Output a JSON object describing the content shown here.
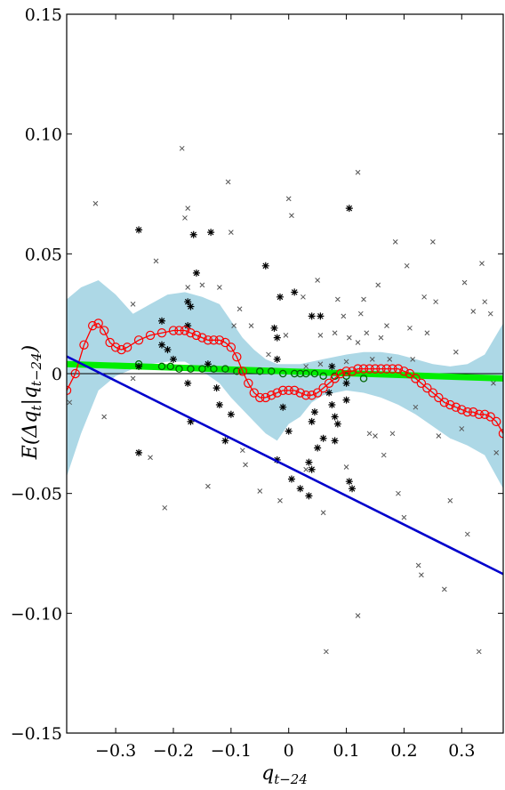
{
  "chart_data": {
    "type": "scatter",
    "title": "",
    "xlabel": "q",
    "xlabel_sub": "t−24",
    "ylabel_parts": [
      "E(",
      "Δq",
      "t",
      "|q",
      "t−24",
      ")"
    ],
    "xlim": [
      -0.385,
      0.372
    ],
    "ylim": [
      -0.15,
      0.15
    ],
    "xticks": [
      -0.3,
      -0.2,
      -0.1,
      0,
      0.1,
      0.2,
      0.3
    ],
    "xtick_labels": [
      "−0.3",
      "−0.2",
      "−0.1",
      "0",
      "0.1",
      "0.2",
      "0.3"
    ],
    "yticks": [
      -0.15,
      -0.1,
      -0.05,
      0,
      0.05,
      0.1,
      0.15
    ],
    "ytick_labels": [
      "−0.15",
      "−0.10",
      "−0.05",
      "0",
      "0.05",
      "0.10",
      "0.15"
    ],
    "grid": false,
    "legend": "none",
    "zero_line": 0,
    "colors": {
      "band": "#add8e6",
      "kernel": "#ff0000",
      "linear": "#0000cc",
      "green": "#00ee00",
      "green_markers": "#006400",
      "points": "#000000"
    },
    "confidence_band": {
      "x": [
        -0.385,
        -0.36,
        -0.33,
        -0.3,
        -0.27,
        -0.24,
        -0.21,
        -0.18,
        -0.15,
        -0.12,
        -0.1,
        -0.08,
        -0.06,
        -0.04,
        -0.02,
        0,
        0.02,
        0.04,
        0.06,
        0.08,
        0.1,
        0.13,
        0.16,
        0.19,
        0.22,
        0.25,
        0.28,
        0.31,
        0.34,
        0.372
      ],
      "upper": [
        0.031,
        0.036,
        0.039,
        0.033,
        0.025,
        0.029,
        0.033,
        0.034,
        0.032,
        0.029,
        0.022,
        0.015,
        0.01,
        0.006,
        0.004,
        0.004,
        0.004,
        0.005,
        0.006,
        0.007,
        0.008,
        0.009,
        0.009,
        0.008,
        0.006,
        0.004,
        0.003,
        0.004,
        0.008,
        0.021
      ],
      "lower": [
        -0.043,
        -0.025,
        -0.007,
        -0.001,
        0.002,
        0.004,
        0.005,
        0.005,
        0.001,
        -0.004,
        -0.01,
        -0.015,
        -0.02,
        -0.025,
        -0.028,
        -0.021,
        -0.018,
        -0.012,
        -0.009,
        -0.008,
        -0.007,
        -0.008,
        -0.01,
        -0.013,
        -0.017,
        -0.022,
        -0.027,
        -0.03,
        -0.034,
        -0.048
      ]
    },
    "series": [
      {
        "type": "line",
        "x": [
          -0.385,
          -0.3
        ],
        "values": [
          0.0072,
          -0.003
        ]
      },
      {
        "type": "kernel",
        "x": [
          -0.385,
          -0.37,
          -0.355,
          -0.34,
          -0.33,
          -0.32,
          -0.31,
          -0.3,
          -0.29,
          -0.28,
          -0.26,
          -0.24,
          -0.22,
          -0.2,
          -0.19,
          -0.18,
          -0.17,
          -0.16,
          -0.15,
          -0.14,
          -0.13,
          -0.12,
          -0.11,
          -0.1,
          -0.09,
          -0.08,
          -0.07,
          -0.06,
          -0.05,
          -0.04,
          -0.03,
          -0.02,
          -0.01,
          0,
          0.01,
          0.02,
          0.03,
          0.04,
          0.05,
          0.06,
          0.07,
          0.08,
          0.09,
          0.1,
          0.11,
          0.12,
          0.13,
          0.14,
          0.15,
          0.16,
          0.17,
          0.18,
          0.19,
          0.2,
          0.21,
          0.22,
          0.23,
          0.24,
          0.25,
          0.26,
          0.27,
          0.28,
          0.29,
          0.3,
          0.31,
          0.32,
          0.33,
          0.34,
          0.35,
          0.36,
          0.372
        ],
        "values": [
          -0.007,
          0.0,
          0.012,
          0.02,
          0.021,
          0.018,
          0.013,
          0.011,
          0.01,
          0.011,
          0.014,
          0.016,
          0.017,
          0.018,
          0.018,
          0.018,
          0.017,
          0.016,
          0.015,
          0.014,
          0.014,
          0.014,
          0.013,
          0.011,
          0.007,
          0.001,
          -0.004,
          -0.008,
          -0.01,
          -0.01,
          -0.009,
          -0.008,
          -0.007,
          -0.007,
          -0.007,
          -0.008,
          -0.009,
          -0.009,
          -0.008,
          -0.006,
          -0.004,
          -0.002,
          0.0,
          0.001,
          0.001,
          0.002,
          0.002,
          0.002,
          0.002,
          0.002,
          0.002,
          0.002,
          0.002,
          0.001,
          0.0,
          -0.002,
          -0.004,
          -0.006,
          -0.008,
          -0.01,
          -0.012,
          -0.013,
          -0.014,
          -0.015,
          -0.016,
          -0.016,
          -0.017,
          -0.017,
          -0.018,
          -0.02,
          -0.025
        ]
      },
      {
        "type": "green_band",
        "x": [
          -0.385,
          0.372
        ],
        "values": [
          0.004,
          -0.002
        ]
      }
    ],
    "green_markers": [
      [
        -0.26,
        0.004
      ],
      [
        -0.22,
        0.003
      ],
      [
        -0.205,
        0.003
      ],
      [
        -0.19,
        0.002
      ],
      [
        -0.17,
        0.002
      ],
      [
        -0.15,
        0.002
      ],
      [
        -0.13,
        0.002
      ],
      [
        -0.11,
        0.002
      ],
      [
        -0.09,
        0.001
      ],
      [
        -0.05,
        0.001
      ],
      [
        -0.03,
        0.001
      ],
      [
        -0.01,
        0.0
      ],
      [
        0.01,
        0.0
      ],
      [
        0.02,
        0.0
      ],
      [
        0.03,
        0.0
      ],
      [
        0.045,
        0.0
      ],
      [
        0.06,
        -0.001
      ],
      [
        0.08,
        -0.001
      ],
      [
        0.1,
        -0.001
      ],
      [
        0.13,
        -0.002
      ]
    ],
    "asterisks": [
      [
        -0.26,
        0.06
      ],
      [
        -0.26,
        -0.033
      ],
      [
        -0.26,
        0.003
      ],
      [
        -0.22,
        0.022
      ],
      [
        -0.22,
        0.012
      ],
      [
        -0.21,
        0.01
      ],
      [
        -0.2,
        0.006
      ],
      [
        -0.165,
        0.058
      ],
      [
        -0.16,
        0.042
      ],
      [
        -0.175,
        0.03
      ],
      [
        -0.17,
        0.028
      ],
      [
        -0.175,
        0.02
      ],
      [
        -0.175,
        -0.004
      ],
      [
        -0.17,
        -0.02
      ],
      [
        -0.135,
        0.059
      ],
      [
        -0.14,
        0.004
      ],
      [
        -0.125,
        -0.006
      ],
      [
        -0.12,
        -0.013
      ],
      [
        -0.1,
        -0.017
      ],
      [
        -0.11,
        -0.028
      ],
      [
        -0.04,
        0.045
      ],
      [
        -0.015,
        0.032
      ],
      [
        -0.025,
        0.019
      ],
      [
        -0.02,
        0.015
      ],
      [
        -0.02,
        0.006
      ],
      [
        -0.01,
        -0.014
      ],
      [
        0.0,
        -0.024
      ],
      [
        -0.02,
        -0.036
      ],
      [
        0.005,
        -0.044
      ],
      [
        0.01,
        0.034
      ],
      [
        0.04,
        0.024
      ],
      [
        0.055,
        0.024
      ],
      [
        0.045,
        -0.016
      ],
      [
        0.04,
        -0.02
      ],
      [
        0.06,
        -0.027
      ],
      [
        0.05,
        -0.031
      ],
      [
        0.035,
        -0.037
      ],
      [
        0.04,
        -0.04
      ],
      [
        0.02,
        -0.048
      ],
      [
        0.035,
        -0.051
      ],
      [
        0.07,
        -0.008
      ],
      [
        0.075,
        -0.013
      ],
      [
        0.08,
        -0.018
      ],
      [
        0.085,
        -0.021
      ],
      [
        0.08,
        -0.028
      ],
      [
        0.105,
        0.069
      ],
      [
        0.075,
        0.003
      ],
      [
        0.1,
        -0.004
      ],
      [
        0.105,
        -0.045
      ],
      [
        0.11,
        -0.048
      ],
      [
        0.1,
        -0.011
      ]
    ],
    "crosses": [
      [
        -0.335,
        0.071
      ],
      [
        -0.38,
        -0.012
      ],
      [
        -0.32,
        -0.018
      ],
      [
        -0.27,
        -0.002
      ],
      [
        -0.24,
        -0.035
      ],
      [
        -0.27,
        0.029
      ],
      [
        -0.23,
        0.047
      ],
      [
        -0.215,
        -0.056
      ],
      [
        -0.185,
        0.094
      ],
      [
        -0.175,
        0.069
      ],
      [
        -0.18,
        0.065
      ],
      [
        -0.175,
        0.036
      ],
      [
        -0.15,
        0.037
      ],
      [
        -0.14,
        -0.047
      ],
      [
        -0.12,
        0.036
      ],
      [
        -0.105,
        0.08
      ],
      [
        -0.1,
        0.059
      ],
      [
        -0.095,
        0.02
      ],
      [
        -0.085,
        0.027
      ],
      [
        -0.08,
        -0.032
      ],
      [
        -0.075,
        -0.038
      ],
      [
        -0.065,
        0.02
      ],
      [
        -0.05,
        -0.049
      ],
      [
        -0.035,
        0.008
      ],
      [
        -0.015,
        -0.053
      ],
      [
        0.0,
        0.073
      ],
      [
        -0.005,
        0.016
      ],
      [
        0.005,
        0.066
      ],
      [
        0.025,
        0.032
      ],
      [
        0.03,
        0.003
      ],
      [
        0.03,
        -0.04
      ],
      [
        0.05,
        0.039
      ],
      [
        0.055,
        0.004
      ],
      [
        0.055,
        0.016
      ],
      [
        0.06,
        -0.058
      ],
      [
        0.065,
        -0.116
      ],
      [
        0.08,
        0.017
      ],
      [
        0.085,
        0.031
      ],
      [
        0.095,
        0.024
      ],
      [
        0.1,
        0.005
      ],
      [
        0.1,
        -0.039
      ],
      [
        0.105,
        0.015
      ],
      [
        0.12,
        0.084
      ],
      [
        0.12,
        0.013
      ],
      [
        0.125,
        0.025
      ],
      [
        0.13,
        0.031
      ],
      [
        0.135,
        0.017
      ],
      [
        0.14,
        -0.025
      ],
      [
        0.145,
        0.006
      ],
      [
        0.15,
        -0.026
      ],
      [
        0.155,
        0.037
      ],
      [
        0.16,
        0.015
      ],
      [
        0.165,
        -0.034
      ],
      [
        0.17,
        0.02
      ],
      [
        0.175,
        0.006
      ],
      [
        0.18,
        -0.025
      ],
      [
        0.185,
        0.055
      ],
      [
        0.19,
        -0.05
      ],
      [
        0.2,
        -0.06
      ],
      [
        0.205,
        0.045
      ],
      [
        0.21,
        0.019
      ],
      [
        0.215,
        0.006
      ],
      [
        0.22,
        -0.014
      ],
      [
        0.225,
        -0.08
      ],
      [
        0.23,
        -0.084
      ],
      [
        0.235,
        0.032
      ],
      [
        0.24,
        0.017
      ],
      [
        0.25,
        0.055
      ],
      [
        0.255,
        0.03
      ],
      [
        0.26,
        -0.026
      ],
      [
        0.27,
        -0.09
      ],
      [
        0.28,
        -0.053
      ],
      [
        0.29,
        0.009
      ],
      [
        0.3,
        -0.023
      ],
      [
        0.305,
        0.038
      ],
      [
        0.31,
        -0.067
      ],
      [
        0.32,
        0.026
      ],
      [
        0.33,
        -0.116
      ],
      [
        0.335,
        0.046
      ],
      [
        0.34,
        0.03
      ],
      [
        0.35,
        0.025
      ],
      [
        0.355,
        -0.004
      ],
      [
        0.36,
        -0.033
      ],
      [
        0.12,
        -0.101
      ]
    ]
  }
}
